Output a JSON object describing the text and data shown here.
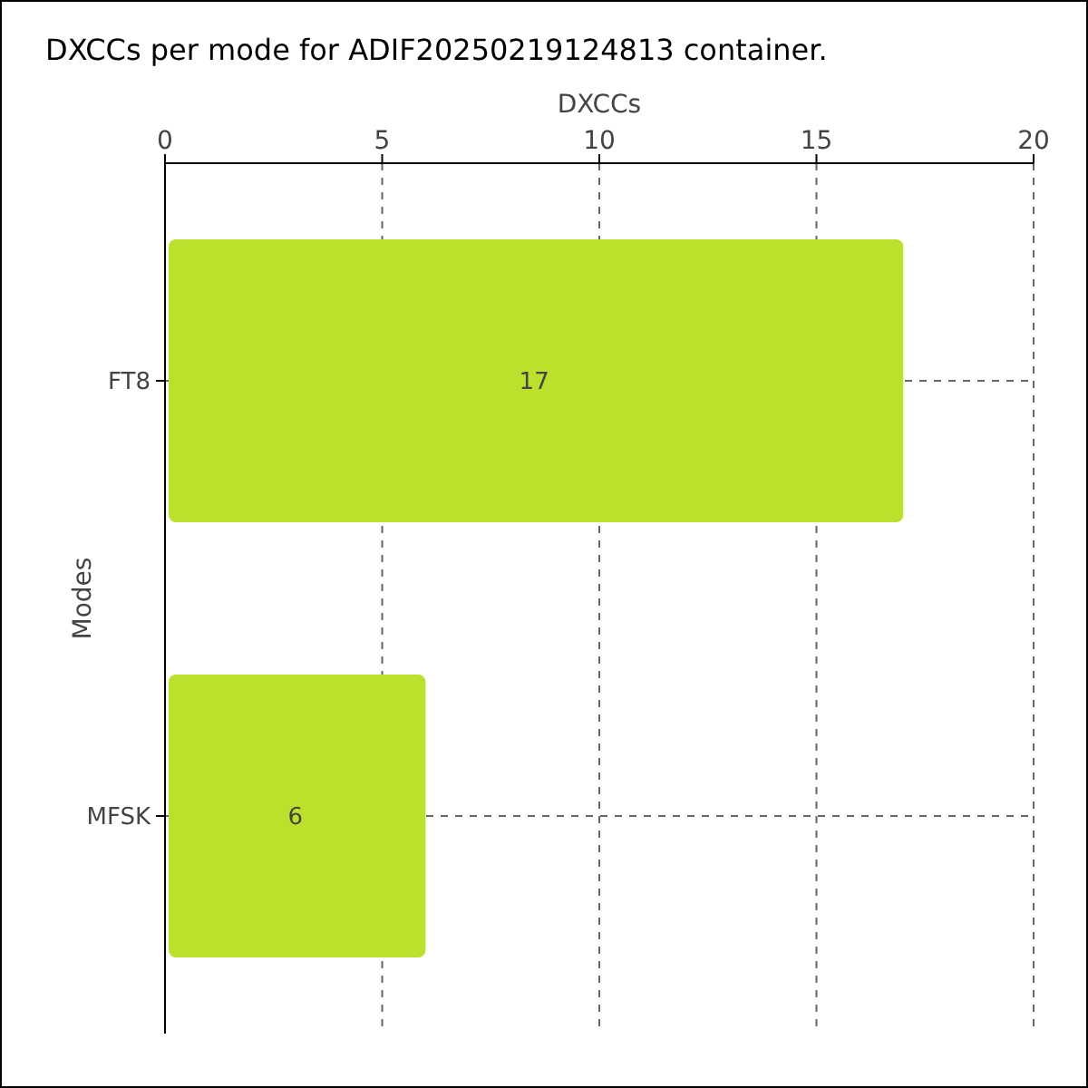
{
  "chart_data": {
    "type": "bar",
    "orientation": "horizontal",
    "title": "DXCCs per mode for ADIF20250219124813 container.",
    "xlabel": "DXCCs",
    "ylabel": "Modes",
    "categories": [
      "FT8",
      "MFSK"
    ],
    "values": [
      17,
      6
    ],
    "color": "#bce12d",
    "xlim": [
      0,
      20
    ],
    "xticks": [
      0,
      5,
      10,
      15,
      20
    ],
    "grid": true,
    "data_labels": true
  }
}
